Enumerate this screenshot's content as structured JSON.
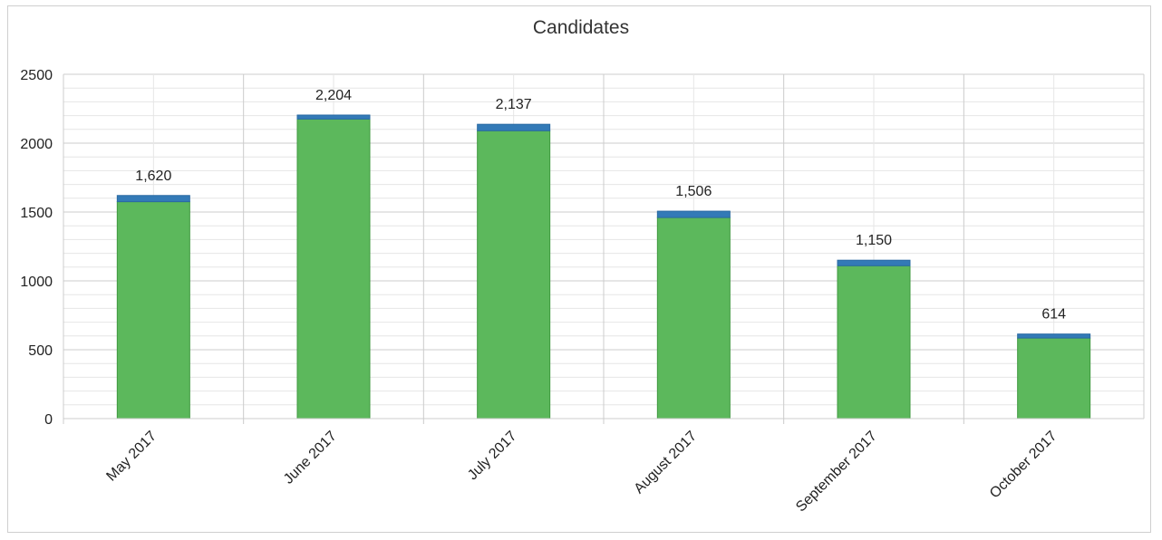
{
  "chart_data": {
    "type": "bar",
    "title": "Candidates",
    "stacked": true,
    "xlabel": "",
    "ylabel": "",
    "categories": [
      "May 2017",
      "June 2017",
      "July 2017",
      "August 2017",
      "September 2017",
      "October 2017"
    ],
    "series": [
      {
        "values": [
          1575,
          2175,
          2090,
          1460,
          1110,
          585
        ]
      },
      {
        "values": [
          45,
          29,
          47,
          46,
          40,
          29
        ]
      }
    ],
    "totals_labels": [
      "1,620",
      "2,204",
      "2,137",
      "1,506",
      "1,150",
      "614"
    ],
    "totals": [
      1620,
      2204,
      2137,
      1506,
      1150,
      614
    ],
    "ylim": [
      0,
      2500
    ],
    "yticks": [
      0,
      500,
      1000,
      1500,
      2000,
      2500
    ],
    "grid": true,
    "colors": {
      "series_0": "#5cb85c",
      "series_0_border": "#3f9a3f",
      "series_1": "#337ab7",
      "series_1_border": "#2a6aa3",
      "grid": "#e6e6e6",
      "grid_major": "#cccccc"
    }
  }
}
